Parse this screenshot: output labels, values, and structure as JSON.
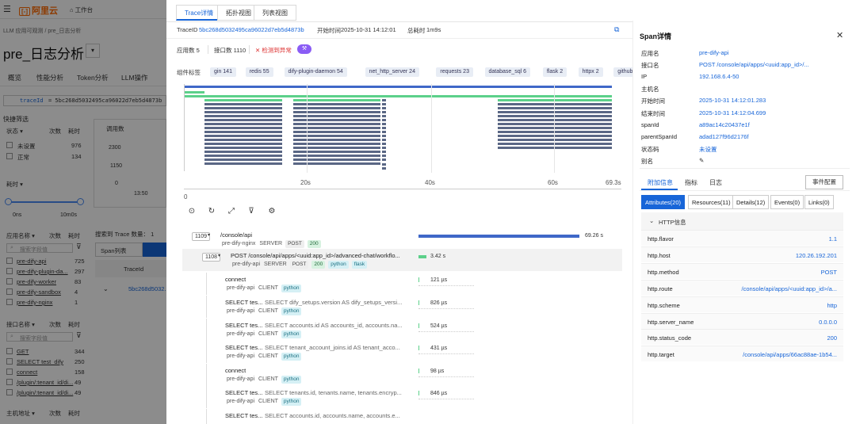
{
  "console": {
    "brand": "阿里云",
    "workbench": "工作台",
    "breadcrumb": "LLM 应用可观测  /  pre_日志分析",
    "title": "pre_日志分析",
    "tabs": [
      "概览",
      "性能分析",
      "Token分析",
      "LLM操作"
    ],
    "query_key": "traceId",
    "query_value": "= 5bc268d5032495ca96022d7eb5d4873b",
    "quick_filter": "快捷筛选",
    "status_header": "状态",
    "count_header": "次数",
    "duration_header": "耗时",
    "status_items": [
      {
        "label": "未设置",
        "count": "976"
      },
      {
        "label": "正常",
        "count": "134"
      }
    ],
    "chart_title": "调用数",
    "chart_y": [
      "2300",
      "1150",
      "0"
    ],
    "chart_x": "13:50",
    "duration_label": "耗时",
    "duration_min": "0ns",
    "duration_max": "10m0s",
    "app_header": "应用名称",
    "search_placeholder": "搜索字段值",
    "apps": [
      {
        "label": "pre-dify-api",
        "count": "725"
      },
      {
        "label": "pre-dify-plugin-da...",
        "count": "297"
      },
      {
        "label": "pre-dify-worker",
        "count": "83"
      },
      {
        "label": "pre-dify-sandbox",
        "count": "4"
      },
      {
        "label": "pre-dify-nginx",
        "count": "1"
      }
    ],
    "iface_header": "接口名称",
    "ifaces": [
      {
        "label": "GET",
        "count": "344"
      },
      {
        "label": "SELECT test_dify",
        "count": "250"
      },
      {
        "label": "connect",
        "count": "158"
      },
      {
        "label": "/plugin/:tenant_id/di...",
        "count": "49"
      },
      {
        "label": "/plugin/:tenant_id/di...",
        "count": "49"
      }
    ],
    "host_header": "主机地址",
    "search_result": "搜索到 Trace 数量： 1",
    "span_list_tab": "Span列表",
    "trace_col": "TraceId",
    "trace_row": "5bc268d5032..."
  },
  "drawer": {
    "tabs": [
      "Trace详情",
      "拓扑视图",
      "列表视图"
    ],
    "traceid_label": "TraceID",
    "traceid_value": "5bc268d5032495ca96022d7eb5d4873b",
    "start_label": "开始时间",
    "start_value": "2025-10-31 14:12:01",
    "total_label": "总耗时",
    "total_value": "1m9s",
    "app_count": "应用数 5",
    "api_count": "接口数 1110",
    "error_detect": "检测到异常",
    "component_label": "组件标签",
    "components": [
      "gin 141",
      "redis 55",
      "dify-plugin-daemon 54",
      "net_http_server 24",
      "requests 23",
      "database_sql 6",
      "flask 2",
      "httpx 2",
      "github.com/langgenius/dify-"
    ],
    "axis_ticks": [
      "0",
      "20s",
      "40s",
      "60s",
      "69.3s"
    ],
    "rows": [
      {
        "count": "1109",
        "title": "/console/api",
        "service": "pre-dify-nginx",
        "kind": "SERVER",
        "tags": [
          "POST",
          "200"
        ],
        "duration": "69.26 s"
      },
      {
        "count": "1108",
        "title": "POST /console/api/apps/<uuid:app_id>/advanced-chat/workflo...",
        "service": "pre-dify-api",
        "kind": "SERVER",
        "tags": [
          "POST",
          "200",
          "python",
          "flask"
        ],
        "duration": "3.42 s"
      },
      {
        "title": "connect",
        "sql": "",
        "service": "pre-dify-api",
        "kind": "CLIENT",
        "tags": [
          "python"
        ],
        "duration": "121 µs"
      },
      {
        "title": "SELECT tes...",
        "sql": "SELECT dify_setups.version AS dify_setups_versi...",
        "service": "pre-dify-api",
        "kind": "CLIENT",
        "tags": [
          "python"
        ],
        "duration": "826 µs"
      },
      {
        "title": "SELECT tes...",
        "sql": "SELECT accounts.id AS accounts_id, accounts.na...",
        "service": "pre-dify-api",
        "kind": "CLIENT",
        "tags": [
          "python"
        ],
        "duration": "524 µs"
      },
      {
        "title": "SELECT tes...",
        "sql": "SELECT tenant_account_joins.id AS tenant_acco...",
        "service": "pre-dify-api",
        "kind": "CLIENT",
        "tags": [
          "python"
        ],
        "duration": "431 µs"
      },
      {
        "title": "connect",
        "sql": "",
        "service": "pre-dify-api",
        "kind": "CLIENT",
        "tags": [
          "python"
        ],
        "duration": "98 µs"
      },
      {
        "title": "SELECT tes...",
        "sql": "SELECT tenants.id, tenants.name, tenants.encryp...",
        "service": "pre-dify-api",
        "kind": "CLIENT",
        "tags": [
          "python"
        ],
        "duration": "846 µs"
      },
      {
        "title": "SELECT tes...",
        "sql": "SELECT accounts.id, accounts.name, accounts.e...",
        "service": "",
        "kind": "",
        "tags": [],
        "duration": ""
      }
    ]
  },
  "span": {
    "title": "Span详情",
    "fields": [
      {
        "k": "应用名",
        "v": "pre-dify-api"
      },
      {
        "k": "接口名",
        "v": "POST /console/api/apps/<uuid:app_id>/..."
      },
      {
        "k": "IP",
        "v": "192.168.6.4-50"
      },
      {
        "k": "主机名",
        "v": ""
      },
      {
        "k": "开始时间",
        "v": "2025-10-31 14:12:01.283"
      },
      {
        "k": "结束时间",
        "v": "2025-10-31 14:12:04.699"
      },
      {
        "k": "spanId",
        "v": "a89ac14c20437e1f"
      },
      {
        "k": "parentSpanId",
        "v": "adad127f96d2176f"
      },
      {
        "k": "状态码",
        "v": "未设置"
      },
      {
        "k": "别名",
        "v": ""
      }
    ],
    "tabs": [
      "附加信息",
      "指标",
      "日志"
    ],
    "event_btn": "事件配置",
    "subtabs": [
      "Attributes(20)",
      "Resources(11)",
      "Details(12)",
      "Events(0)",
      "Links(0)"
    ],
    "http_section": "HTTP信息",
    "attrs": [
      {
        "k": "http.flavor",
        "v": "1.1"
      },
      {
        "k": "http.host",
        "v": "120.26.192.201"
      },
      {
        "k": "http.method",
        "v": "POST"
      },
      {
        "k": "http.route",
        "v": "/console/api/apps/<uuid:app_id>/a..."
      },
      {
        "k": "http.scheme",
        "v": "http"
      },
      {
        "k": "http.server_name",
        "v": "0.0.0.0"
      },
      {
        "k": "http.status_code",
        "v": "200"
      },
      {
        "k": "http.target",
        "v": "/console/api/apps/66ac88ae-1b54..."
      }
    ]
  },
  "colors": {
    "accent": "#1765d8",
    "green": "#5cd08a",
    "timeline": "#5a6785"
  }
}
